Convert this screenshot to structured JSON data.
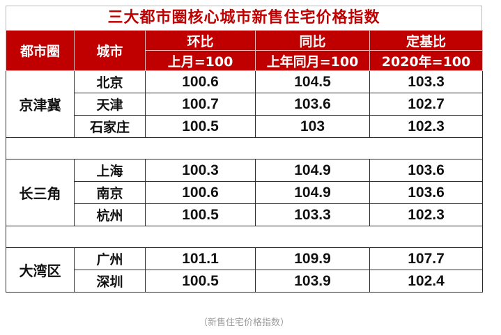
{
  "title": "三大都市圈核心城市新售住宅价格指数",
  "headers": {
    "region": "都市圈",
    "city": "城市",
    "mom": "环比",
    "mom_base": "上月=100",
    "yoy": "同比",
    "yoy_base": "上年同月=100",
    "fixed": "定基比",
    "fixed_base": "2020年=100"
  },
  "groups": [
    {
      "region": "京津冀",
      "rows": [
        {
          "city": "北京",
          "mom": "100.6",
          "yoy": "104.5",
          "fixed": "103.3"
        },
        {
          "city": "天津",
          "mom": "100.7",
          "yoy": "103.6",
          "fixed": "102.7"
        },
        {
          "city": "石家庄",
          "mom": "100.5",
          "yoy": "103",
          "fixed": "102.3"
        }
      ]
    },
    {
      "region": "长三角",
      "rows": [
        {
          "city": "上海",
          "mom": "100.3",
          "yoy": "104.9",
          "fixed": "103.6"
        },
        {
          "city": "南京",
          "mom": "100.6",
          "yoy": "104.9",
          "fixed": "103.6"
        },
        {
          "city": "杭州",
          "mom": "100.5",
          "yoy": "103.3",
          "fixed": "102.3"
        }
      ]
    },
    {
      "region": "大湾区",
      "rows": [
        {
          "city": "广州",
          "mom": "101.1",
          "yoy": "109.9",
          "fixed": "107.7"
        },
        {
          "city": "深圳",
          "mom": "100.5",
          "yoy": "103.9",
          "fixed": "102.4"
        }
      ]
    }
  ],
  "caption": "（新售住宅价格指数）",
  "colors": {
    "header_bg": "#c00000",
    "title": "#c00000"
  }
}
